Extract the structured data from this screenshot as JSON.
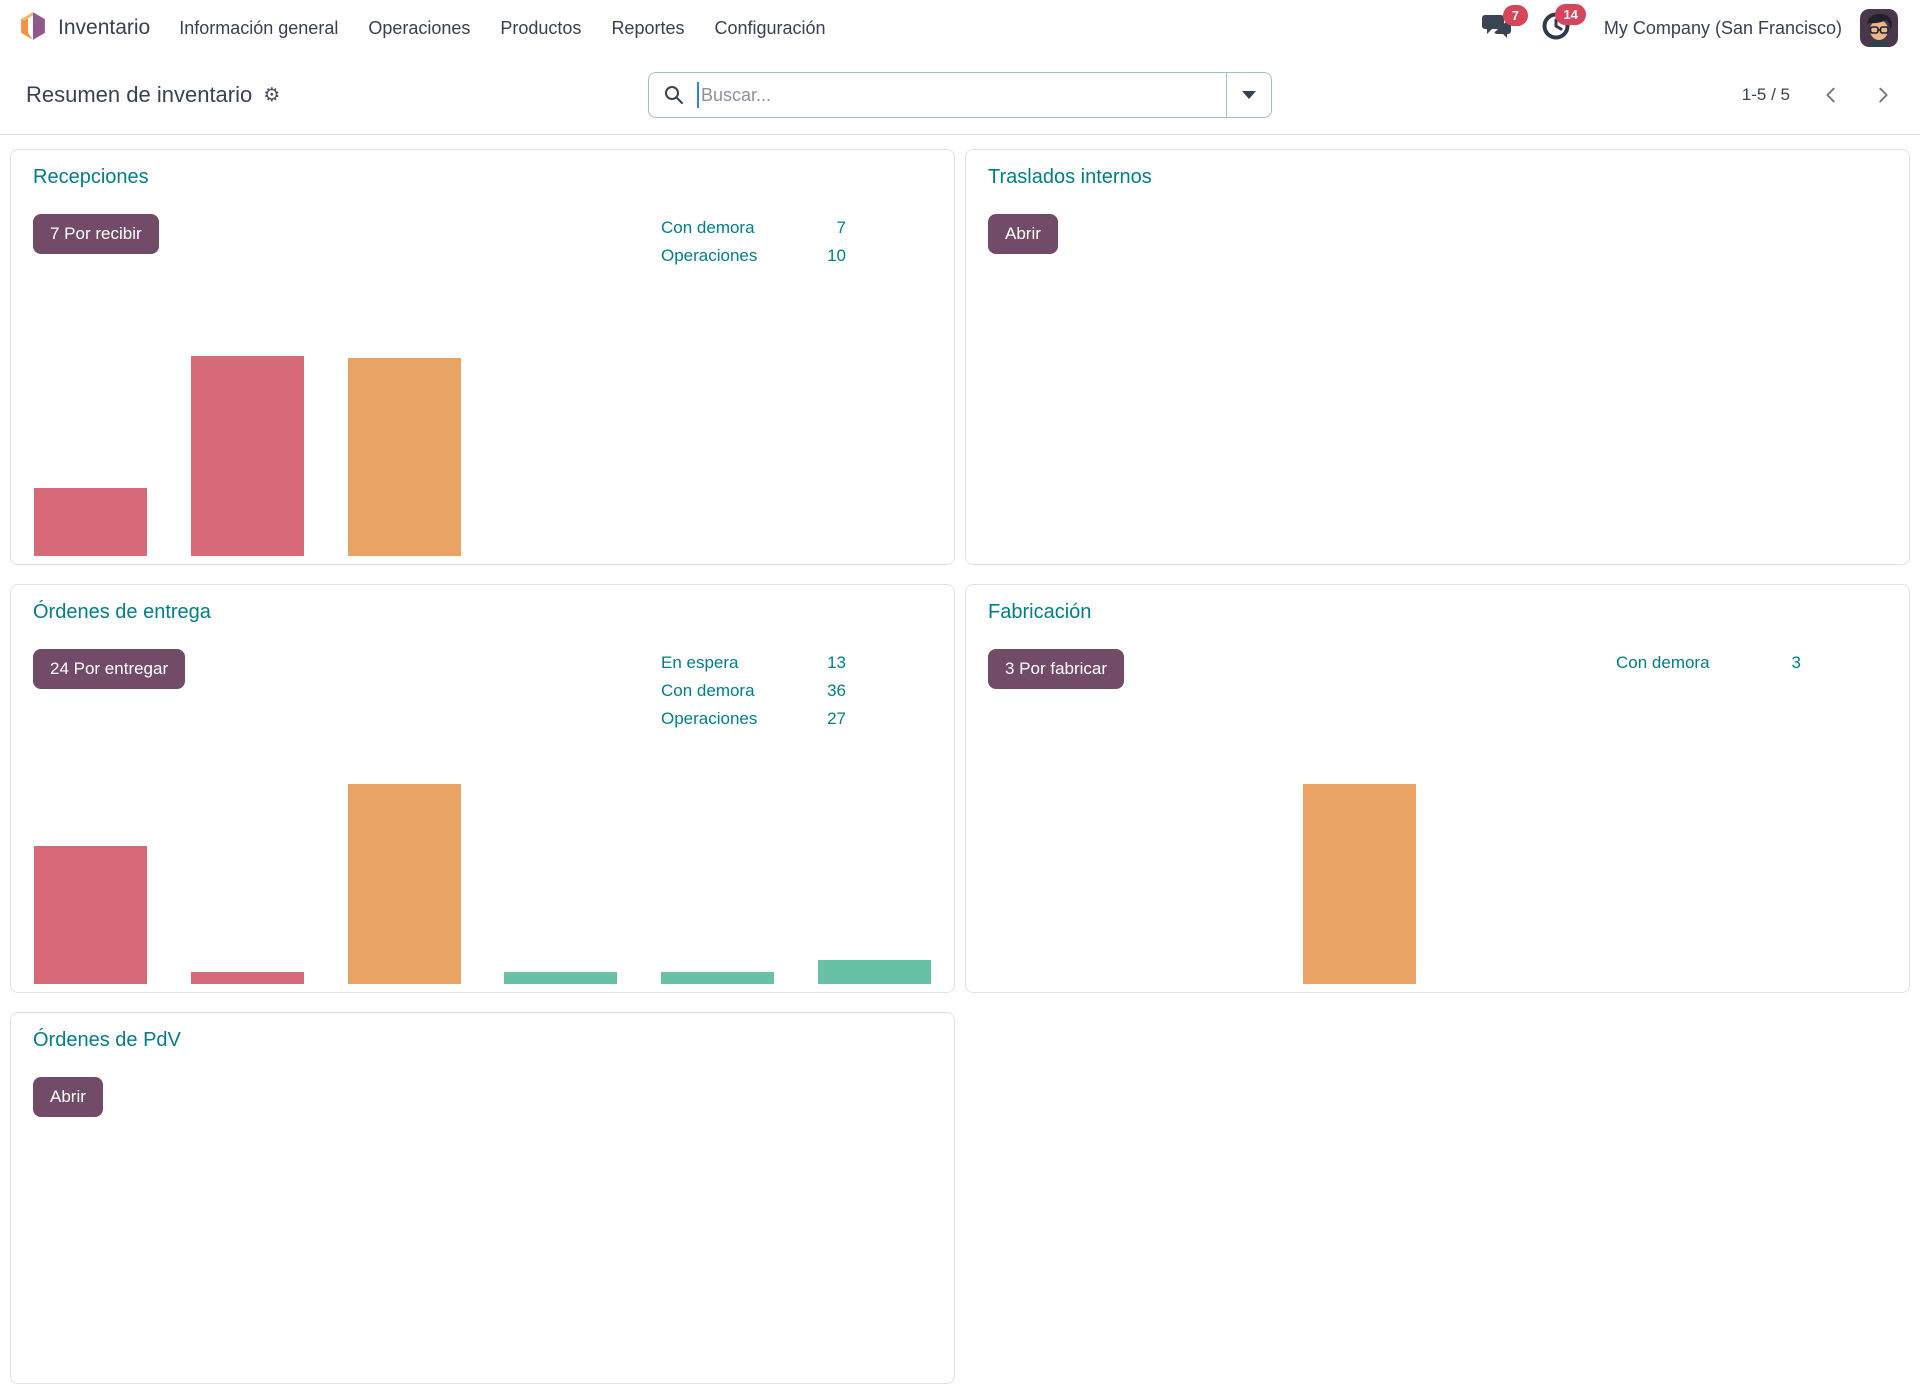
{
  "navbar": {
    "brand": "Inventario",
    "menu_items": [
      "Información general",
      "Operaciones",
      "Productos",
      "Reportes",
      "Configuración"
    ],
    "messages_badge": "7",
    "activities_badge": "14",
    "company": "My Company (San Francisco)"
  },
  "control_panel": {
    "title": "Resumen de inventario",
    "search_placeholder": "Buscar...",
    "pager": "1-5 / 5"
  },
  "icons": {
    "settings_gear": "⚙"
  },
  "colors": {
    "accent_teal": "#017e84",
    "button_purple": "#714B67",
    "badge_red": "#d6455a",
    "bar_pink": "#d66a78",
    "bar_orange": "#e9a465",
    "bar_teal": "#68c0a6"
  },
  "cards": [
    {
      "title": "Recepciones",
      "button": "7 Por recibir",
      "stats": [
        {
          "label": "Con demora",
          "value": "7"
        },
        {
          "label": "Operaciones",
          "value": "10"
        }
      ],
      "bars": [
        {
          "slot": 1,
          "color": "bar_pink",
          "height_pct": 34
        },
        {
          "slot": 2,
          "color": "bar_pink",
          "height_pct": 100
        },
        {
          "slot": 3,
          "color": "bar_orange",
          "height_pct": 99
        }
      ]
    },
    {
      "title": "Traslados internos",
      "button": "Abrir",
      "stats": [],
      "bars": []
    },
    {
      "title": "Órdenes de entrega",
      "button": "24 Por entregar",
      "stats": [
        {
          "label": "En espera",
          "value": "13"
        },
        {
          "label": "Con demora",
          "value": "36"
        },
        {
          "label": "Operaciones",
          "value": "27"
        }
      ],
      "bars": [
        {
          "slot": 1,
          "color": "bar_pink",
          "height_pct": 69
        },
        {
          "slot": 2,
          "color": "bar_pink",
          "height_pct": 6
        },
        {
          "slot": 3,
          "color": "bar_orange",
          "height_pct": 100
        },
        {
          "slot": 4,
          "color": "bar_teal",
          "height_pct": 6
        },
        {
          "slot": 5,
          "color": "bar_teal",
          "height_pct": 6
        },
        {
          "slot": 6,
          "color": "bar_teal",
          "height_pct": 12
        }
      ]
    },
    {
      "title": "Fabricación",
      "button": "3 Por fabricar",
      "stats": [
        {
          "label": "Con demora",
          "value": "3"
        }
      ],
      "bars": [
        {
          "slot": 3,
          "color": "bar_orange",
          "height_pct": 100
        }
      ]
    },
    {
      "title": "Órdenes de PdV",
      "button": "Abrir",
      "stats": [],
      "bars": []
    }
  ]
}
